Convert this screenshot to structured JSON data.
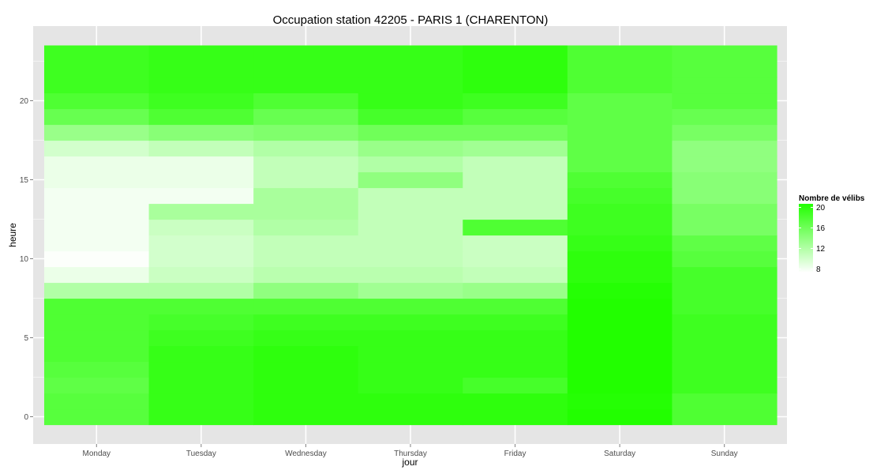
{
  "chart_data": {
    "type": "heatmap",
    "title": "Occupation station 42205 - PARIS 1 (CHARENTON)",
    "xlabel": "jour",
    "ylabel": "heure",
    "x_categories": [
      "Monday",
      "Tuesday",
      "Wednesday",
      "Thursday",
      "Friday",
      "Saturday",
      "Sunday"
    ],
    "y_range": [
      0,
      23
    ],
    "y_ticks": [
      0,
      5,
      10,
      15,
      20
    ],
    "grid": true,
    "legend": {
      "title": "Nombre de vélibs",
      "position": "right",
      "ticks": [
        8,
        12,
        16,
        20
      ],
      "range": [
        7.3,
        20.7
      ],
      "low_color": "#ffffff",
      "high_color": "#22ff00"
    },
    "values": [
      [
        17.5,
        19.5,
        20,
        20,
        20,
        21,
        18
      ],
      [
        17.5,
        19.5,
        20,
        20,
        20,
        20.5,
        18
      ],
      [
        17,
        19.5,
        20,
        19.5,
        18.5,
        21,
        19
      ],
      [
        17.5,
        19.5,
        20,
        19.5,
        19.5,
        21,
        19
      ],
      [
        18,
        19.5,
        20,
        19.5,
        19.5,
        21.5,
        19
      ],
      [
        18,
        19,
        19.5,
        19.5,
        19.5,
        21.5,
        19
      ],
      [
        18,
        18.5,
        19,
        19,
        19,
        21.5,
        19
      ],
      [
        18,
        18,
        18,
        18,
        18,
        21,
        18.5
      ],
      [
        12,
        12,
        14,
        13,
        13.5,
        20.5,
        18.5
      ],
      [
        8.5,
        10.5,
        11.5,
        11.5,
        11,
        20,
        18.5
      ],
      [
        7.5,
        10,
        11,
        11,
        10.5,
        20,
        17.5
      ],
      [
        8,
        10,
        11,
        11,
        10.5,
        19.5,
        17
      ],
      [
        8,
        10.5,
        12,
        11,
        18,
        19,
        15.5
      ],
      [
        8,
        12.5,
        12.5,
        11,
        11,
        19,
        15.5
      ],
      [
        8,
        8,
        12.5,
        11,
        11,
        18.5,
        14.5
      ],
      [
        8.5,
        8.5,
        11,
        14,
        11,
        18,
        14.5
      ],
      [
        8.5,
        8.5,
        11,
        12,
        11,
        17,
        14
      ],
      [
        10,
        11,
        12,
        13.5,
        13,
        17,
        14
      ],
      [
        13.5,
        14.5,
        15,
        16,
        16,
        17,
        15.5
      ],
      [
        16.5,
        18,
        16.5,
        18.5,
        17.5,
        17,
        16.5
      ],
      [
        18,
        19,
        18,
        19.5,
        19,
        17,
        17.5
      ],
      [
        19,
        19.5,
        19.5,
        19.5,
        20,
        18,
        17.5
      ],
      [
        19,
        19.5,
        19.5,
        19.5,
        20,
        18,
        17.5
      ],
      [
        19,
        19.5,
        19.5,
        19.5,
        20,
        18,
        17.5
      ]
    ]
  }
}
